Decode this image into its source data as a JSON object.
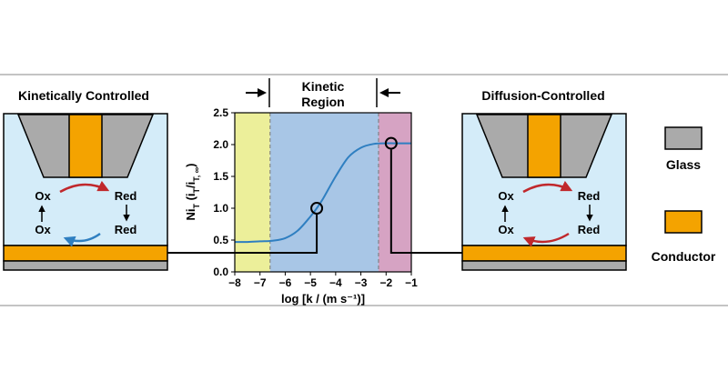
{
  "left_panel": {
    "title": "Kinetically Controlled",
    "ox_top": "Ox",
    "red_top": "Red",
    "ox_bottom": "Ox",
    "red_bottom": "Red"
  },
  "right_panel": {
    "title": "Diffusion-Controlled",
    "ox_top": "Ox",
    "red_top": "Red",
    "ox_bottom": "Ox",
    "red_bottom": "Red"
  },
  "legend": {
    "glass": "Glass",
    "conductor": "Conductor"
  },
  "region_label": {
    "line1": "Kinetic",
    "line2": "Region"
  },
  "colors": {
    "glass": "#aaaaaa",
    "conductor": "#f4a300",
    "solution": "#d4ecf9",
    "region_yellow": "#ecef9a",
    "region_blue": "#a8c6e6",
    "region_pink": "#d6a3c3",
    "curve": "#2f7fc1",
    "arrow_red": "#c0282c",
    "arrow_blue": "#2f7fc1"
  },
  "chart_data": {
    "type": "line",
    "xlabel": "log [k / (m s⁻¹)]",
    "ylabel": "Ni",
    "ylabel_sub": "T",
    "ylabel_rest": " (i",
    "ylabel_sub2": "T",
    "ylabel_slash": "/i",
    "ylabel_sub3": "T, ∞",
    "ylabel_end": ")",
    "xlim": [
      -8,
      -1
    ],
    "ylim": [
      0,
      2.5
    ],
    "xticks": [
      "−8",
      "−7",
      "−6",
      "−5",
      "−4",
      "−3",
      "−2",
      "−1"
    ],
    "yticks": [
      "0.0",
      "0.5",
      "1.0",
      "1.5",
      "2.0",
      "2.5"
    ],
    "regions": [
      {
        "x0": -8,
        "x1": -6.6,
        "color": "yellow"
      },
      {
        "x0": -6.6,
        "x1": -2.3,
        "color": "blue"
      },
      {
        "x0": -2.3,
        "x1": -1,
        "color": "pink"
      }
    ],
    "series": [
      {
        "x": [
          -8,
          -7.5,
          -7,
          -6.5,
          -6,
          -5.5,
          -5,
          -4.75,
          -4.5,
          -4,
          -3.5,
          -3,
          -2.5,
          -2,
          -1.5,
          -1
        ],
        "y": [
          0.47,
          0.47,
          0.48,
          0.49,
          0.53,
          0.65,
          0.87,
          1.0,
          1.15,
          1.5,
          1.8,
          1.95,
          2.01,
          2.02,
          2.02,
          2.02
        ]
      }
    ],
    "markers": [
      {
        "x": -4.75,
        "y": 1.0
      },
      {
        "x": -1.8,
        "y": 2.02
      }
    ],
    "boundaries": [
      -6.6,
      -2.3
    ]
  }
}
